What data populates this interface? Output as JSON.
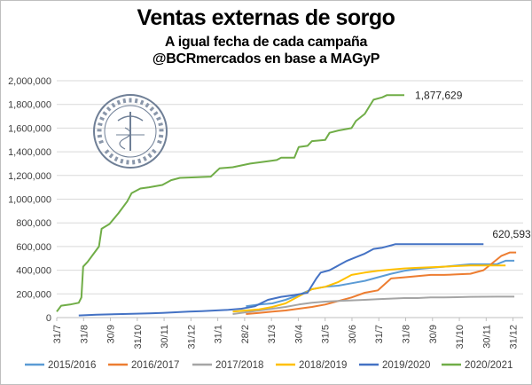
{
  "chart_data": {
    "type": "line",
    "title": "Ventas externas de sorgo",
    "subtitle_1": "A igual fecha de cada campaña",
    "subtitle_2": "@BCRmercados en base a MAGyP",
    "xlabel": "",
    "ylabel": "",
    "ylim": [
      0,
      2000000
    ],
    "yticks": [
      "0",
      "200,000",
      "400,000",
      "600,000",
      "800,000",
      "1,000,000",
      "1,200,000",
      "1,400,000",
      "1,600,000",
      "1,800,000",
      "2,000,000"
    ],
    "xticks": [
      "31/7",
      "31/8",
      "30/9",
      "31/10",
      "30/11",
      "31/12",
      "31/1",
      "28/2",
      "31/3",
      "30/4",
      "31/5",
      "30/6",
      "31/7",
      "31/8",
      "30/9",
      "31/10",
      "30/11",
      "31/12"
    ],
    "x_unit": "date (campaign day, 31/7 to mid-January of the following year)",
    "grid": "horizontal",
    "legend_position": "bottom",
    "annotations": [
      "1,877,629",
      "620,593"
    ],
    "series": [
      {
        "name": "2015/2016",
        "color": "#5b9bd5",
        "points": [
          [
            215,
            95000
          ],
          [
            230,
            110000
          ],
          [
            245,
            120000
          ],
          [
            260,
            150000
          ],
          [
            275,
            190000
          ],
          [
            290,
            240000
          ],
          [
            305,
            260000
          ],
          [
            320,
            270000
          ],
          [
            335,
            290000
          ],
          [
            350,
            310000
          ],
          [
            365,
            340000
          ],
          [
            380,
            370000
          ],
          [
            395,
            395000
          ],
          [
            410,
            410000
          ],
          [
            425,
            420000
          ],
          [
            440,
            430000
          ],
          [
            455,
            440000
          ],
          [
            470,
            450000
          ],
          [
            485,
            450000
          ],
          [
            500,
            450000
          ],
          [
            510,
            480000
          ],
          [
            520,
            480000
          ]
        ]
      },
      {
        "name": "2016/2017",
        "color": "#ed7d31",
        "points": [
          [
            215,
            30000
          ],
          [
            230,
            40000
          ],
          [
            245,
            50000
          ],
          [
            260,
            60000
          ],
          [
            275,
            75000
          ],
          [
            290,
            90000
          ],
          [
            305,
            110000
          ],
          [
            320,
            140000
          ],
          [
            335,
            170000
          ],
          [
            350,
            210000
          ],
          [
            365,
            230000
          ],
          [
            380,
            330000
          ],
          [
            395,
            340000
          ],
          [
            410,
            350000
          ],
          [
            425,
            360000
          ],
          [
            440,
            360000
          ],
          [
            455,
            365000
          ],
          [
            470,
            370000
          ],
          [
            485,
            400000
          ],
          [
            495,
            460000
          ],
          [
            505,
            520000
          ],
          [
            515,
            550000
          ],
          [
            522,
            550000
          ]
        ]
      },
      {
        "name": "2017/2018",
        "color": "#a5a5a5",
        "points": [
          [
            200,
            30000
          ],
          [
            215,
            45000
          ],
          [
            230,
            60000
          ],
          [
            245,
            75000
          ],
          [
            260,
            90000
          ],
          [
            275,
            110000
          ],
          [
            290,
            125000
          ],
          [
            305,
            135000
          ],
          [
            320,
            140000
          ],
          [
            335,
            145000
          ],
          [
            350,
            150000
          ],
          [
            365,
            155000
          ],
          [
            380,
            160000
          ],
          [
            395,
            165000
          ],
          [
            410,
            165000
          ],
          [
            425,
            170000
          ],
          [
            440,
            170000
          ],
          [
            455,
            172000
          ],
          [
            470,
            175000
          ],
          [
            485,
            176000
          ],
          [
            500,
            177000
          ],
          [
            520,
            177000
          ]
        ]
      },
      {
        "name": "2018/2019",
        "color": "#ffc000",
        "points": [
          [
            200,
            50000
          ],
          [
            215,
            60000
          ],
          [
            230,
            70000
          ],
          [
            245,
            90000
          ],
          [
            260,
            120000
          ],
          [
            275,
            180000
          ],
          [
            290,
            240000
          ],
          [
            305,
            260000
          ],
          [
            320,
            300000
          ],
          [
            335,
            360000
          ],
          [
            350,
            380000
          ],
          [
            365,
            395000
          ],
          [
            380,
            405000
          ],
          [
            395,
            415000
          ],
          [
            410,
            420000
          ],
          [
            425,
            425000
          ],
          [
            440,
            430000
          ],
          [
            455,
            435000
          ],
          [
            470,
            440000
          ],
          [
            485,
            440000
          ],
          [
            500,
            440000
          ],
          [
            510,
            440000
          ]
        ]
      },
      {
        "name": "2019/2020",
        "color": "#4472c4",
        "points": [
          [
            25,
            18000
          ],
          [
            45,
            25000
          ],
          [
            75,
            30000
          ],
          [
            105,
            35000
          ],
          [
            120,
            40000
          ],
          [
            135,
            45000
          ],
          [
            150,
            50000
          ],
          [
            165,
            55000
          ],
          [
            180,
            60000
          ],
          [
            195,
            65000
          ],
          [
            210,
            75000
          ],
          [
            225,
            95000
          ],
          [
            240,
            150000
          ],
          [
            255,
            175000
          ],
          [
            270,
            190000
          ],
          [
            285,
            210000
          ],
          [
            295,
            330000
          ],
          [
            300,
            380000
          ],
          [
            310,
            400000
          ],
          [
            320,
            440000
          ],
          [
            330,
            480000
          ],
          [
            340,
            510000
          ],
          [
            350,
            540000
          ],
          [
            360,
            580000
          ],
          [
            370,
            590000
          ],
          [
            380,
            610000
          ],
          [
            385,
            620000
          ],
          [
            395,
            620000
          ],
          [
            410,
            620593
          ],
          [
            440,
            620593
          ],
          [
            480,
            620593
          ],
          [
            485,
            620593
          ]
        ]
      },
      {
        "name": "2020/2021",
        "color": "#70ad47",
        "points": [
          [
            0,
            50000
          ],
          [
            5,
            100000
          ],
          [
            15,
            110000
          ],
          [
            25,
            125000
          ],
          [
            28,
            170000
          ],
          [
            30,
            430000
          ],
          [
            35,
            470000
          ],
          [
            42,
            540000
          ],
          [
            48,
            600000
          ],
          [
            51,
            750000
          ],
          [
            60,
            790000
          ],
          [
            70,
            880000
          ],
          [
            80,
            980000
          ],
          [
            85,
            1050000
          ],
          [
            95,
            1090000
          ],
          [
            105,
            1100000
          ],
          [
            120,
            1120000
          ],
          [
            130,
            1160000
          ],
          [
            140,
            1180000
          ],
          [
            160,
            1185000
          ],
          [
            175,
            1190000
          ],
          [
            185,
            1260000
          ],
          [
            200,
            1270000
          ],
          [
            220,
            1300000
          ],
          [
            240,
            1320000
          ],
          [
            250,
            1330000
          ],
          [
            255,
            1350000
          ],
          [
            270,
            1350000
          ],
          [
            275,
            1440000
          ],
          [
            285,
            1450000
          ],
          [
            290,
            1490000
          ],
          [
            305,
            1500000
          ],
          [
            310,
            1560000
          ],
          [
            320,
            1580000
          ],
          [
            335,
            1600000
          ],
          [
            340,
            1660000
          ],
          [
            350,
            1720000
          ],
          [
            355,
            1780000
          ],
          [
            360,
            1840000
          ],
          [
            370,
            1860000
          ],
          [
            375,
            1877629
          ],
          [
            385,
            1877629
          ],
          [
            395,
            1877629
          ]
        ]
      }
    ]
  }
}
